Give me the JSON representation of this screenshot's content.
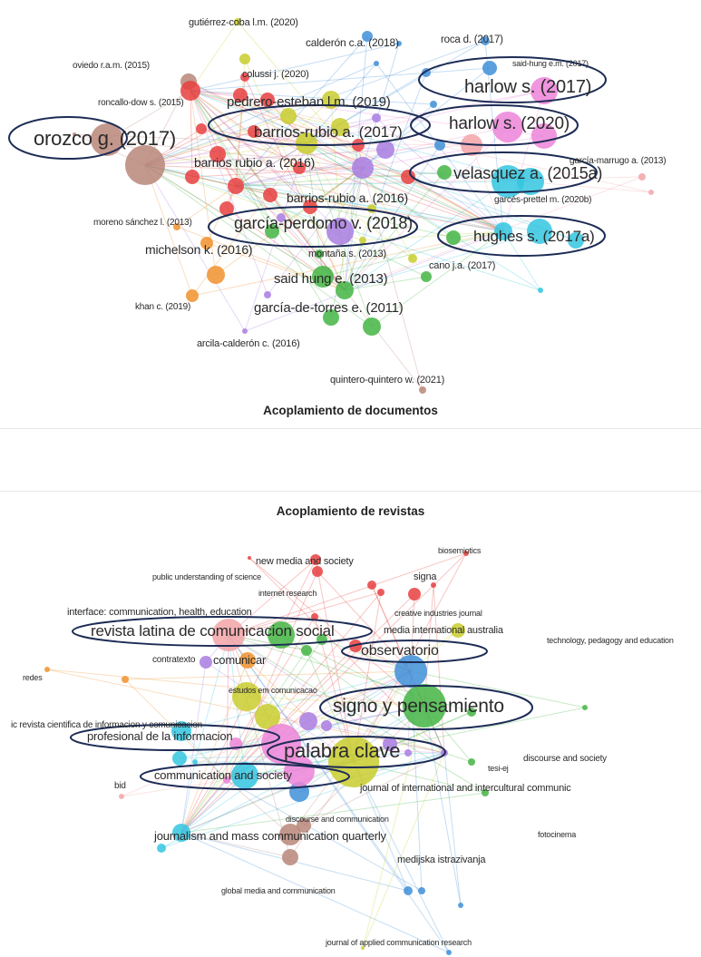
{
  "documents": {
    "title": "Acoplamiento de documentos",
    "labels": [
      "gutiérrez-coba l.m. (2020)",
      "calderón c.a. (2018)",
      "roca d. (2017)",
      "said-hung e.m. (2017)",
      "oviedo r.a.m. (2015)",
      "colussi j. (2020)",
      "harlow s. (2017)",
      "pedrero-esteban l.m. (2019)",
      "roncallo-dow s. (2015)",
      "harlow s. (2020)",
      "orozco g. (2017)",
      "barrios-rubio a. (2017)",
      "barrios rubio a. (2016)",
      "garcía-marrugo a. (2013)",
      "velasquez a. (2015a)",
      "barrios-rubio a. (2016)",
      "garcés-prettel m. (2020b)",
      "moreno sánchez l. (2013)",
      "garcía-perdomo v. (2018)",
      "hughes s. (2017a)",
      "michelson k. (2016)",
      "montaña s. (2013)",
      "cano j.a. (2017)",
      "said hung e. (2013)",
      "khan c. (2019)",
      "garcía-de-torres e. (2011)",
      "arcila-calderón c. (2016)",
      "quintero-quintero w. (2021)"
    ]
  },
  "journals": {
    "title": "Acoplamiento de revistas",
    "labels": [
      "biosemiotics",
      "new media and society",
      "public understanding of science",
      "signa",
      "internet research",
      "interface: communication, health, education",
      "creative industries journal",
      "revista latina de comunicacion social",
      "media international australia",
      "technology, pedagogy and education",
      "observatorio",
      "contratexto",
      "comunicar",
      "redes",
      "estudos em comunicacao",
      "signo y pensamiento",
      "ic revista cientifica de informacion y comunicacion",
      "profesional de la informacion",
      "palabra clave",
      "discourse and society",
      "tesi-ej",
      "communication and society",
      "bid",
      "journal of international and intercultural communic",
      "discourse and communication",
      "journalism and mass communication quarterly",
      "fotocinema",
      "medijska istrazivanja",
      "global media and communication",
      "journal of applied communication research"
    ]
  },
  "cluster_colors": {
    "red": "#e8403f",
    "yellow": "#c9cc2e",
    "blue": "#3f8fd8",
    "cyan": "#34c6e0",
    "green": "#44b544",
    "purple": "#a97de0",
    "orange": "#f0922e",
    "brown": "#b98679",
    "pink": "#ec84d8",
    "lightred": "#f2a4a8",
    "highlight": "#1d2c55"
  }
}
